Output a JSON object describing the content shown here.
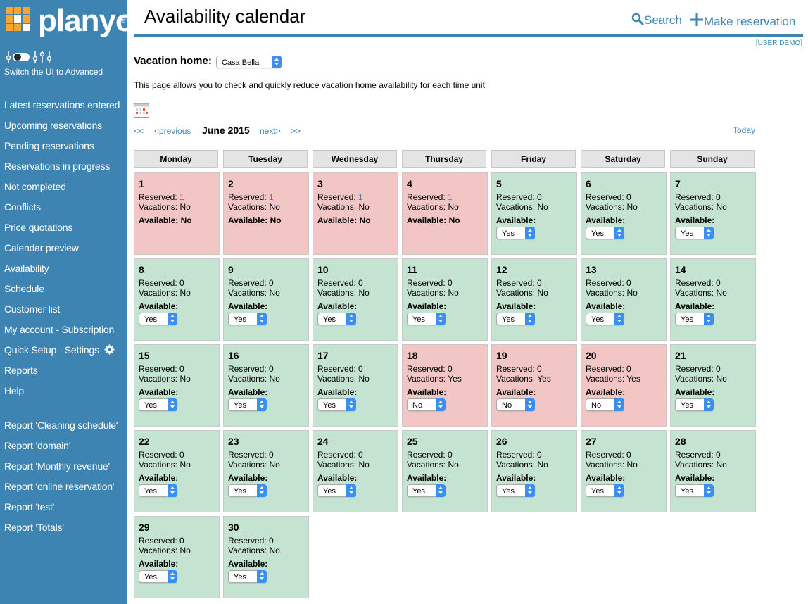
{
  "app": {
    "logo_text": "planyo",
    "logo_reg": "®",
    "switch_caption": "Switch the UI to Advanced"
  },
  "sidebar": {
    "items": [
      {
        "label": "Latest reservations entered"
      },
      {
        "label": "Upcoming reservations"
      },
      {
        "label": "Pending reservations"
      },
      {
        "label": "Reservations in progress"
      },
      {
        "label": "Not completed"
      },
      {
        "label": "Conflicts"
      },
      {
        "label": "Price quotations"
      },
      {
        "label": "Calendar preview"
      },
      {
        "label": "Availability"
      },
      {
        "label": "Schedule"
      },
      {
        "label": "Customer list"
      },
      {
        "label": "My account - Subscription"
      },
      {
        "label": "Quick Setup - Settings",
        "icon": "gear-icon"
      },
      {
        "label": "Reports"
      },
      {
        "label": "Help"
      }
    ],
    "reports": [
      {
        "label": "Report 'Cleaning schedule'"
      },
      {
        "label": "Report 'domain'"
      },
      {
        "label": "Report 'Monthly revenue'"
      },
      {
        "label": "Report 'online reservation'"
      },
      {
        "label": "Report 'test'"
      },
      {
        "label": "Report 'Totals'"
      }
    ]
  },
  "header": {
    "title": "Availability calendar",
    "search_label": "Search",
    "make_label": "Make reservation",
    "user_demo": "[USER DEMO]"
  },
  "resource": {
    "label": "Vacation home:",
    "selected": "Casa Bella"
  },
  "intro": "This page allows you to check and quickly reduce vacation home availability for each time unit.",
  "calendar": {
    "nav": {
      "first": "<<",
      "prev": "<previous",
      "month": "June 2015",
      "next": "next>",
      "last": ">>",
      "today": "Today"
    },
    "weekdays": [
      "Monday",
      "Tuesday",
      "Wednesday",
      "Thursday",
      "Friday",
      "Saturday",
      "Sunday"
    ],
    "labels": {
      "reserved": "Reserved:",
      "vacations": "Vacations:",
      "available": "Available:"
    },
    "colors": {
      "available": "#c5e3d1",
      "unavailable": "#f3c6c6",
      "accent": "#3e84b2"
    },
    "days": [
      {
        "day": "1",
        "reserved": "1",
        "vacations": "No",
        "available": "No",
        "status": "red",
        "editable": false
      },
      {
        "day": "2",
        "reserved": "1",
        "vacations": "No",
        "available": "No",
        "status": "red",
        "editable": false
      },
      {
        "day": "3",
        "reserved": "1",
        "vacations": "No",
        "available": "No",
        "status": "red",
        "editable": false
      },
      {
        "day": "4",
        "reserved": "1",
        "vacations": "No",
        "available": "No",
        "status": "red",
        "editable": false
      },
      {
        "day": "5",
        "reserved": "0",
        "vacations": "No",
        "available": "Yes",
        "status": "green",
        "editable": true
      },
      {
        "day": "6",
        "reserved": "0",
        "vacations": "No",
        "available": "Yes",
        "status": "green",
        "editable": true
      },
      {
        "day": "7",
        "reserved": "0",
        "vacations": "No",
        "available": "Yes",
        "status": "green",
        "editable": true
      },
      {
        "day": "8",
        "reserved": "0",
        "vacations": "No",
        "available": "Yes",
        "status": "green",
        "editable": true
      },
      {
        "day": "9",
        "reserved": "0",
        "vacations": "No",
        "available": "Yes",
        "status": "green",
        "editable": true
      },
      {
        "day": "10",
        "reserved": "0",
        "vacations": "No",
        "available": "Yes",
        "status": "green",
        "editable": true
      },
      {
        "day": "11",
        "reserved": "0",
        "vacations": "No",
        "available": "Yes",
        "status": "green",
        "editable": true
      },
      {
        "day": "12",
        "reserved": "0",
        "vacations": "No",
        "available": "Yes",
        "status": "green",
        "editable": true
      },
      {
        "day": "13",
        "reserved": "0",
        "vacations": "No",
        "available": "Yes",
        "status": "green",
        "editable": true
      },
      {
        "day": "14",
        "reserved": "0",
        "vacations": "No",
        "available": "Yes",
        "status": "green",
        "editable": true
      },
      {
        "day": "15",
        "reserved": "0",
        "vacations": "No",
        "available": "Yes",
        "status": "green",
        "editable": true
      },
      {
        "day": "16",
        "reserved": "0",
        "vacations": "No",
        "available": "Yes",
        "status": "green",
        "editable": true
      },
      {
        "day": "17",
        "reserved": "0",
        "vacations": "No",
        "available": "Yes",
        "status": "green",
        "editable": true
      },
      {
        "day": "18",
        "reserved": "0",
        "vacations": "Yes",
        "available": "No",
        "status": "red",
        "editable": true
      },
      {
        "day": "19",
        "reserved": "0",
        "vacations": "Yes",
        "available": "No",
        "status": "red",
        "editable": true
      },
      {
        "day": "20",
        "reserved": "0",
        "vacations": "Yes",
        "available": "No",
        "status": "red",
        "editable": true
      },
      {
        "day": "21",
        "reserved": "0",
        "vacations": "No",
        "available": "Yes",
        "status": "green",
        "editable": true
      },
      {
        "day": "22",
        "reserved": "0",
        "vacations": "No",
        "available": "Yes",
        "status": "green",
        "editable": true
      },
      {
        "day": "23",
        "reserved": "0",
        "vacations": "No",
        "available": "Yes",
        "status": "green",
        "editable": true
      },
      {
        "day": "24",
        "reserved": "0",
        "vacations": "No",
        "available": "Yes",
        "status": "green",
        "editable": true
      },
      {
        "day": "25",
        "reserved": "0",
        "vacations": "No",
        "available": "Yes",
        "status": "green",
        "editable": true
      },
      {
        "day": "26",
        "reserved": "0",
        "vacations": "No",
        "available": "Yes",
        "status": "green",
        "editable": true
      },
      {
        "day": "27",
        "reserved": "0",
        "vacations": "No",
        "available": "Yes",
        "status": "green",
        "editable": true
      },
      {
        "day": "28",
        "reserved": "0",
        "vacations": "No",
        "available": "Yes",
        "status": "green",
        "editable": true
      },
      {
        "day": "29",
        "reserved": "0",
        "vacations": "No",
        "available": "Yes",
        "status": "green",
        "editable": true
      },
      {
        "day": "30",
        "reserved": "0",
        "vacations": "No",
        "available": "Yes",
        "status": "green",
        "editable": true
      }
    ]
  }
}
